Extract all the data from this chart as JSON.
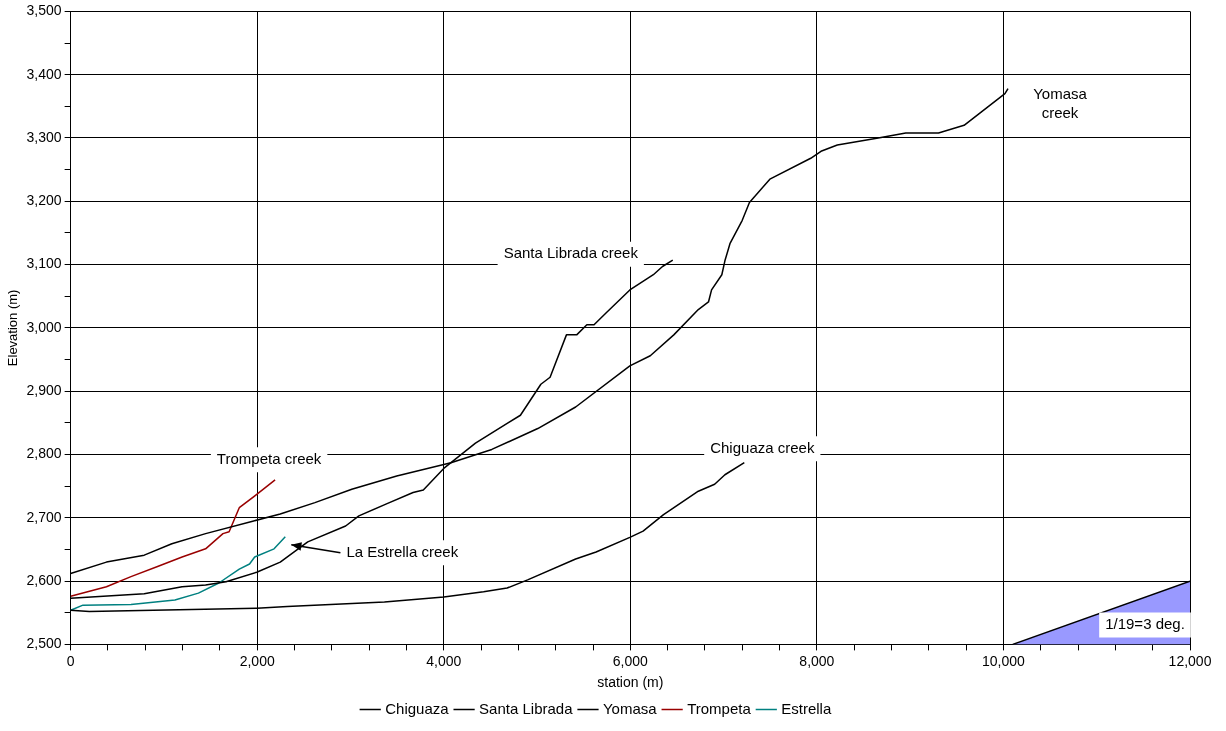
{
  "chart_data": {
    "type": "line",
    "xlabel": "station (m)",
    "ylabel": "Elevation (m)",
    "xlim": [
      0,
      12000
    ],
    "ylim": [
      2500,
      3500
    ],
    "xticks": [
      {
        "value": 0,
        "label": "0"
      },
      {
        "value": 400,
        "label": null
      },
      {
        "value": 800,
        "label": null
      },
      {
        "value": 1200,
        "label": null
      },
      {
        "value": 1600,
        "label": null
      },
      {
        "value": 2000,
        "label": "2,000"
      },
      {
        "value": 2400,
        "label": null
      },
      {
        "value": 2800,
        "label": null
      },
      {
        "value": 3200,
        "label": null
      },
      {
        "value": 3600,
        "label": null
      },
      {
        "value": 4000,
        "label": "4,000"
      },
      {
        "value": 4400,
        "label": null
      },
      {
        "value": 4800,
        "label": null
      },
      {
        "value": 5200,
        "label": null
      },
      {
        "value": 5600,
        "label": null
      },
      {
        "value": 6000,
        "label": "6,000"
      },
      {
        "value": 6400,
        "label": null
      },
      {
        "value": 6800,
        "label": null
      },
      {
        "value": 7200,
        "label": null
      },
      {
        "value": 7600,
        "label": null
      },
      {
        "value": 8000,
        "label": "8,000"
      },
      {
        "value": 8400,
        "label": null
      },
      {
        "value": 8800,
        "label": null
      },
      {
        "value": 9200,
        "label": null
      },
      {
        "value": 9600,
        "label": null
      },
      {
        "value": 10000,
        "label": "10,000"
      },
      {
        "value": 10400,
        "label": null
      },
      {
        "value": 10800,
        "label": null
      },
      {
        "value": 11200,
        "label": null
      },
      {
        "value": 11600,
        "label": null
      },
      {
        "value": 12000,
        "label": "12,000"
      }
    ],
    "yticks": [
      {
        "value": 2500,
        "label": "2,500"
      },
      {
        "value": 2550,
        "label": null
      },
      {
        "value": 2600,
        "label": "2,600"
      },
      {
        "value": 2650,
        "label": null
      },
      {
        "value": 2700,
        "label": "2,700"
      },
      {
        "value": 2750,
        "label": null
      },
      {
        "value": 2800,
        "label": "2,800"
      },
      {
        "value": 2850,
        "label": null
      },
      {
        "value": 2900,
        "label": "2,900"
      },
      {
        "value": 2950,
        "label": null
      },
      {
        "value": 3000,
        "label": "3,000"
      },
      {
        "value": 3050,
        "label": null
      },
      {
        "value": 3100,
        "label": "3,100"
      },
      {
        "value": 3150,
        "label": null
      },
      {
        "value": 3200,
        "label": "3,200"
      },
      {
        "value": 3250,
        "label": null
      },
      {
        "value": 3300,
        "label": "3,300"
      },
      {
        "value": 3350,
        "label": null
      },
      {
        "value": 3400,
        "label": "3,400"
      },
      {
        "value": 3450,
        "label": null
      },
      {
        "value": 3500,
        "label": "3,500"
      }
    ],
    "grid": true,
    "legend": "bottom",
    "marker": "none",
    "line_style": "solid",
    "series": [
      {
        "name": "Chiguaza",
        "color": "#000000",
        "x": [
          0,
          200,
          1995,
          2323,
          3364,
          4000,
          4427,
          4679,
          4899,
          5414,
          5633,
          5995,
          6137,
          6356,
          6729,
          6904,
          7014,
          7222
        ],
        "values": [
          2554,
          2552,
          2557,
          2560,
          2567,
          2575,
          2583,
          2589,
          2602,
          2635,
          2646,
          2669,
          2679,
          2705,
          2742,
          2753,
          2768,
          2787
        ]
      },
      {
        "name": "Santa Librada",
        "color": "#000000",
        "x": [
          0,
          789,
          1195,
          1447,
          1666,
          1995,
          2247,
          2542,
          2948,
          3090,
          3386,
          3671,
          3781,
          4000,
          4340,
          4822,
          5041,
          5140,
          5315,
          5425,
          5534,
          5611,
          5742,
          5995,
          6181,
          6247,
          6345,
          6455
        ],
        "values": [
          2573,
          2580,
          2591,
          2594,
          2599,
          2614,
          2630,
          2662,
          2687,
          2703,
          2722,
          2740,
          2744,
          2778,
          2818,
          2862,
          2911,
          2922,
          2989,
          2989,
          3005,
          3005,
          3024,
          3060,
          3078,
          3084,
          3097,
          3107
        ]
      },
      {
        "name": "Yomasa",
        "color": "#000000",
        "x": [
          0,
          384,
          789,
          1085,
          1447,
          1962,
          2247,
          2619,
          3014,
          3496,
          4077,
          4515,
          5008,
          5414,
          5995,
          6214,
          6466,
          6729,
          6838,
          6871,
          6981,
          7014,
          7068,
          7200,
          7277,
          7496,
          7934,
          8044,
          8219,
          8658,
          8953,
          9304,
          9578,
          10016,
          10049
        ],
        "values": [
          2612,
          2630,
          2641,
          2659,
          2675,
          2695,
          2706,
          2724,
          2745,
          2766,
          2787,
          2808,
          2841,
          2875,
          2940,
          2956,
          2989,
          3029,
          3041,
          3060,
          3084,
          3106,
          3133,
          3170,
          3198,
          3235,
          3268,
          3279,
          3289,
          3300,
          3308,
          3308,
          3320,
          3370,
          3378
        ]
      },
      {
        "name": "Trompeta",
        "color": "#990000",
        "x": [
          0,
          384,
          647,
          932,
          1195,
          1447,
          1633,
          1699,
          1808,
          1995,
          2192
        ],
        "values": [
          2576,
          2591,
          2607,
          2623,
          2638,
          2651,
          2675,
          2678,
          2716,
          2737,
          2760
        ]
      },
      {
        "name": "Estrella",
        "color": "#008080",
        "x": [
          0,
          132,
          647,
          1118,
          1370,
          1589,
          1808,
          1918,
          1973,
          2181,
          2301
        ],
        "values": [
          2554,
          2562,
          2563,
          2570,
          2581,
          2597,
          2619,
          2627,
          2638,
          2651,
          2670
        ]
      },
      {
        "type": "area",
        "color": "#9999ff",
        "x": [
          10100,
          12000
        ],
        "values": [
          2500,
          2600
        ]
      }
    ],
    "annotations": [
      "Yomasa\ncreek",
      "Santa Librada creek",
      "Chiguaza creek",
      "Trompeta creek",
      "La Estrella creek",
      "1/19=3 deg."
    ]
  }
}
